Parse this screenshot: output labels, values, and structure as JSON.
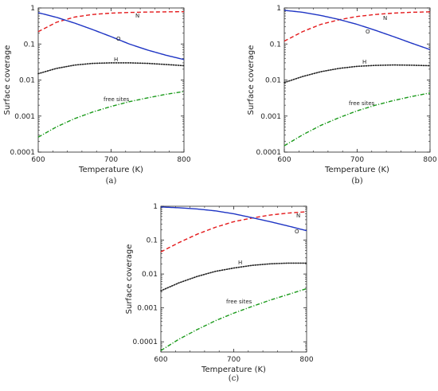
{
  "colors": {
    "N": "#e41a1c",
    "O": "#1f35c4",
    "H": "#222222",
    "free sites": "#1a9a1a"
  },
  "chart_data": [
    {
      "type": "line",
      "panel_label": "(a)",
      "xlabel": "Temperature (K)",
      "ylabel": "Surface coverage",
      "xlim": [
        600,
        800
      ],
      "ylim": [
        0.0001,
        1
      ],
      "yscale": "log",
      "xticks": [
        "600",
        "700",
        "800"
      ],
      "yticks": [
        "1",
        "0.1",
        "0.01",
        "0.001",
        "0.0001"
      ],
      "x": [
        600,
        625,
        650,
        675,
        700,
        725,
        750,
        775,
        800
      ],
      "series": [
        {
          "name": "N",
          "style": "dashed",
          "values": [
            0.22,
            0.4,
            0.56,
            0.66,
            0.72,
            0.75,
            0.77,
            0.78,
            0.79
          ]
        },
        {
          "name": "O",
          "style": "solid",
          "values": [
            0.74,
            0.55,
            0.38,
            0.25,
            0.16,
            0.1,
            0.068,
            0.049,
            0.037
          ]
        },
        {
          "name": "H",
          "style": "dotted",
          "values": [
            0.015,
            0.021,
            0.026,
            0.029,
            0.03,
            0.03,
            0.029,
            0.027,
            0.025
          ]
        },
        {
          "name": "free sites",
          "style": "dashdot",
          "values": [
            0.00026,
            0.0005,
            0.00085,
            0.0013,
            0.00185,
            0.0025,
            0.0032,
            0.004,
            0.0048
          ]
        }
      ]
    },
    {
      "type": "line",
      "panel_label": "(b)",
      "xlabel": "Temperature (K)",
      "ylabel": "Surface coverage",
      "xlim": [
        600,
        800
      ],
      "ylim": [
        0.0001,
        1
      ],
      "yscale": "log",
      "xticks": [
        "600",
        "700",
        "800"
      ],
      "yticks": [
        "1",
        "0.1",
        "0.01",
        "0.001",
        "0.0001"
      ],
      "x": [
        600,
        625,
        650,
        675,
        700,
        725,
        750,
        775,
        800
      ],
      "series": [
        {
          "name": "N",
          "style": "dashed",
          "values": [
            0.12,
            0.22,
            0.35,
            0.47,
            0.58,
            0.66,
            0.72,
            0.76,
            0.78
          ]
        },
        {
          "name": "O",
          "style": "solid",
          "values": [
            0.86,
            0.76,
            0.62,
            0.48,
            0.35,
            0.24,
            0.16,
            0.105,
            0.07
          ]
        },
        {
          "name": "H",
          "style": "dotted",
          "values": [
            0.0085,
            0.0125,
            0.017,
            0.021,
            0.024,
            0.0255,
            0.0262,
            0.0258,
            0.025
          ]
        },
        {
          "name": "free sites",
          "style": "dashdot",
          "values": [
            0.00015,
            0.0003,
            0.00055,
            0.0009,
            0.0014,
            0.002,
            0.0027,
            0.0035,
            0.0044
          ]
        }
      ]
    },
    {
      "type": "line",
      "panel_label": "(c)",
      "xlabel": "Temperature (K)",
      "ylabel": "Surface coverage",
      "xlim": [
        600,
        800
      ],
      "ylim": [
        5e-05,
        1
      ],
      "yscale": "log",
      "xticks": [
        "600",
        "700",
        "800"
      ],
      "yticks": [
        "1",
        "0.1",
        "0.01",
        "0.001",
        "0.0001"
      ],
      "x": [
        600,
        625,
        650,
        675,
        700,
        725,
        750,
        775,
        800
      ],
      "series": [
        {
          "name": "N",
          "style": "dashed",
          "values": [
            0.045,
            0.085,
            0.15,
            0.24,
            0.35,
            0.45,
            0.55,
            0.63,
            0.69
          ]
        },
        {
          "name": "O",
          "style": "solid",
          "values": [
            0.95,
            0.9,
            0.83,
            0.73,
            0.6,
            0.46,
            0.35,
            0.26,
            0.19
          ]
        },
        {
          "name": "H",
          "style": "dotted",
          "values": [
            0.0032,
            0.0055,
            0.0085,
            0.012,
            0.015,
            0.018,
            0.02,
            0.021,
            0.021
          ]
        },
        {
          "name": "free sites",
          "style": "dashdot",
          "values": [
            5.5e-05,
            0.00012,
            0.00023,
            0.00042,
            0.0007,
            0.0011,
            0.0017,
            0.0025,
            0.0037
          ]
        }
      ]
    }
  ]
}
